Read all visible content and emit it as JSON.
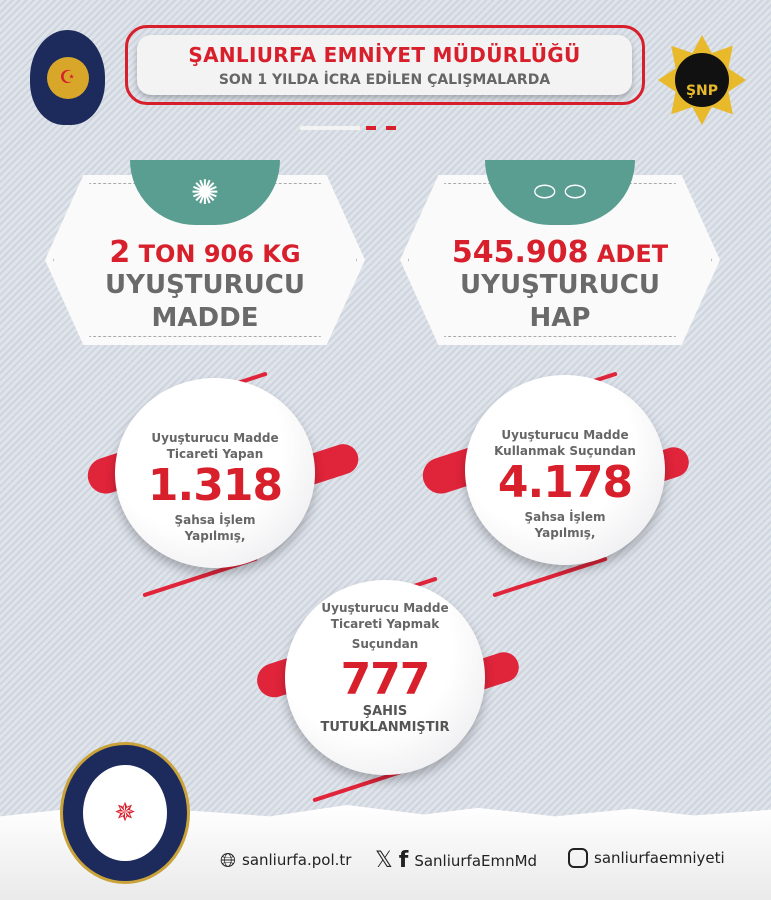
{
  "header": {
    "title": "ŞANLIURFA EMNİYET MÜDÜRLÜĞÜ",
    "subtitle": "SON 1 YILDA İCRA EDİLEN ÇALIŞMALARDA"
  },
  "logos": {
    "left": "POLİS GENEL MÜDÜRLÜĞÜ 1845",
    "right": "ŞNP",
    "bottom": "ŞANLIURFA EMNİYET MÜDÜRLÜĞÜ EGM"
  },
  "cards": [
    {
      "icon": "cannabis-leaf-icon",
      "amount_num": "2",
      "amount_unit": "TON 906 KG",
      "line1": "UYUŞTURUCU",
      "line2": "MADDE"
    },
    {
      "icon": "pill-capsule-icon",
      "amount_num": "545.908",
      "amount_unit": "ADET",
      "line1": "UYUŞTURUCU",
      "line2": "HAP"
    }
  ],
  "stats": [
    {
      "top1": "Uyuşturucu Madde",
      "top2": "Ticareti Yapan",
      "value": "1.318",
      "bottom1": "Şahsa İşlem",
      "bottom2": "Yapılmış,"
    },
    {
      "top1": "Uyuşturucu Madde",
      "top2": "Kullanmak Suçundan",
      "value": "4.178",
      "bottom1": "Şahsa İşlem",
      "bottom2": "Yapılmış,"
    },
    {
      "top1": "Uyuşturucu Madde",
      "top2": "Ticareti Yapmak",
      "top3": "Suçundan",
      "value": "777",
      "bottom1": "ŞAHIS",
      "bottom2": "TUTUKLANMIŞTIR"
    }
  ],
  "footer": {
    "website": "sanliurfa.pol.tr",
    "social": "SanliurfaEmnMd",
    "instagram": "sanliurfaemniyeti"
  },
  "colors": {
    "accent": "#d8202c",
    "teal": "#5a9e91",
    "text": "#6a6a6a"
  }
}
